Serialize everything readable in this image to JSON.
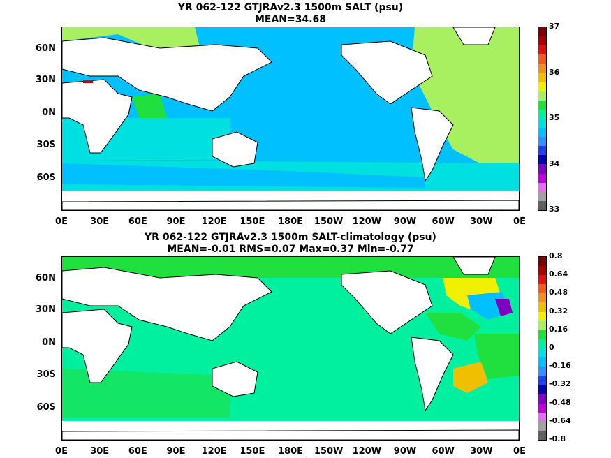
{
  "panels": [
    {
      "title_line1": "YR 062-122 GTJRAv2.3 1500m SALT (psu)",
      "title_line2": "MEAN=34.68",
      "colorbar": {
        "labels": [
          "37",
          "36",
          "35",
          "34",
          "33"
        ],
        "colors": [
          "#7a0000",
          "#a80000",
          "#e01010",
          "#f05a1a",
          "#f09020",
          "#f0c000",
          "#f0f000",
          "#a8f060",
          "#20e040",
          "#00f0a0",
          "#00e0e0",
          "#00c0ff",
          "#3090ff",
          "#2040f0",
          "#0000b0",
          "#8000c0",
          "#c000e0",
          "#e070f0",
          "#a0a0a0",
          "#606060"
        ]
      }
    },
    {
      "title_line1": "YR 062-122 GTJRAv2.3 1500m SALT-climatology (psu)",
      "title_line2": "MEAN=-0.01   RMS=0.07   Max=0.37   Min=-0.77",
      "colorbar": {
        "labels": [
          "0.8",
          "0.64",
          "0.48",
          "0.32",
          "0.16",
          "0",
          "-0.16",
          "-0.32",
          "-0.48",
          "-0.64",
          "-0.8"
        ],
        "colors": [
          "#7a0000",
          "#a80000",
          "#e01010",
          "#f05a1a",
          "#f09020",
          "#f0c000",
          "#f0f000",
          "#a8f060",
          "#20e040",
          "#00f0a0",
          "#00e0e0",
          "#00c0ff",
          "#3090ff",
          "#2040f0",
          "#0000b0",
          "#8000c0",
          "#c000e0",
          "#e070f0",
          "#a0a0a0",
          "#606060"
        ]
      }
    }
  ],
  "axes": {
    "lat_labels": [
      "60N",
      "30N",
      "0N",
      "30S",
      "60S"
    ],
    "lon_labels": [
      "0E",
      "30E",
      "60E",
      "90E",
      "120E",
      "150E",
      "180E",
      "150W",
      "120W",
      "90W",
      "60W",
      "30W",
      "0E"
    ]
  }
}
